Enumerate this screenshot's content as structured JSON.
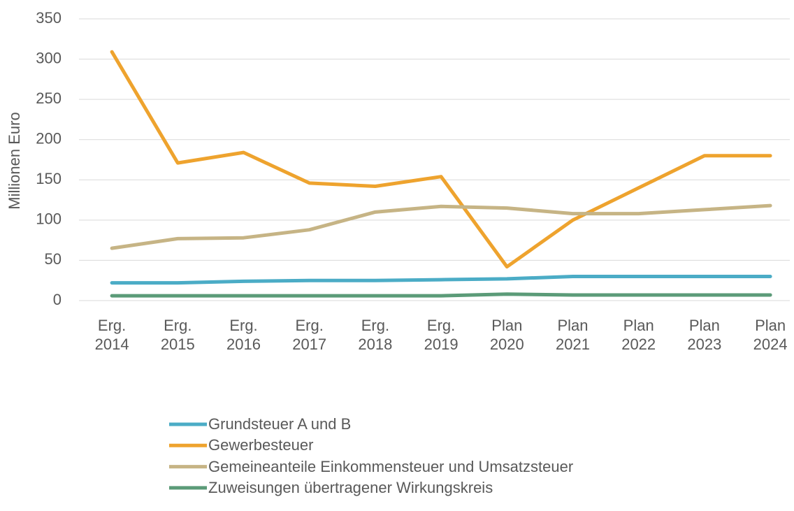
{
  "chart_data": {
    "type": "line",
    "y_label": "Millionen Euro",
    "categories": [
      "Erg. 2014",
      "Erg. 2015",
      "Erg. 2016",
      "Erg. 2017",
      "Erg. 2018",
      "Erg. 2019",
      "Plan 2020",
      "Plan 2021",
      "Plan 2022",
      "Plan 2023",
      "Plan 2024"
    ],
    "series": [
      {
        "name": "Grundsteuer A und B",
        "color": "#4bacc6",
        "values": [
          22,
          22,
          24,
          25,
          25,
          26,
          27,
          30,
          30,
          30,
          30
        ]
      },
      {
        "name": "Gewerbesteuer",
        "color": "#eea32e",
        "values": [
          309,
          171,
          184,
          146,
          142,
          154,
          42,
          100,
          140,
          180,
          180
        ]
      },
      {
        "name": "Gemeineanteile Einkommensteuer und Umsatzsteuer",
        "color": "#c6b485",
        "values": [
          65,
          77,
          78,
          88,
          110,
          117,
          115,
          108,
          108,
          113,
          118
        ]
      },
      {
        "name": "Zuweisungen übertragener Wirkungskreis",
        "color": "#5b9b78",
        "values": [
          6,
          6,
          6,
          6,
          6,
          6,
          8,
          7,
          7,
          7,
          7
        ]
      }
    ],
    "ylim": [
      0,
      350
    ],
    "yticks": [
      0,
      50,
      100,
      150,
      200,
      250,
      300,
      350
    ],
    "grid": true,
    "legend": "bottom"
  }
}
